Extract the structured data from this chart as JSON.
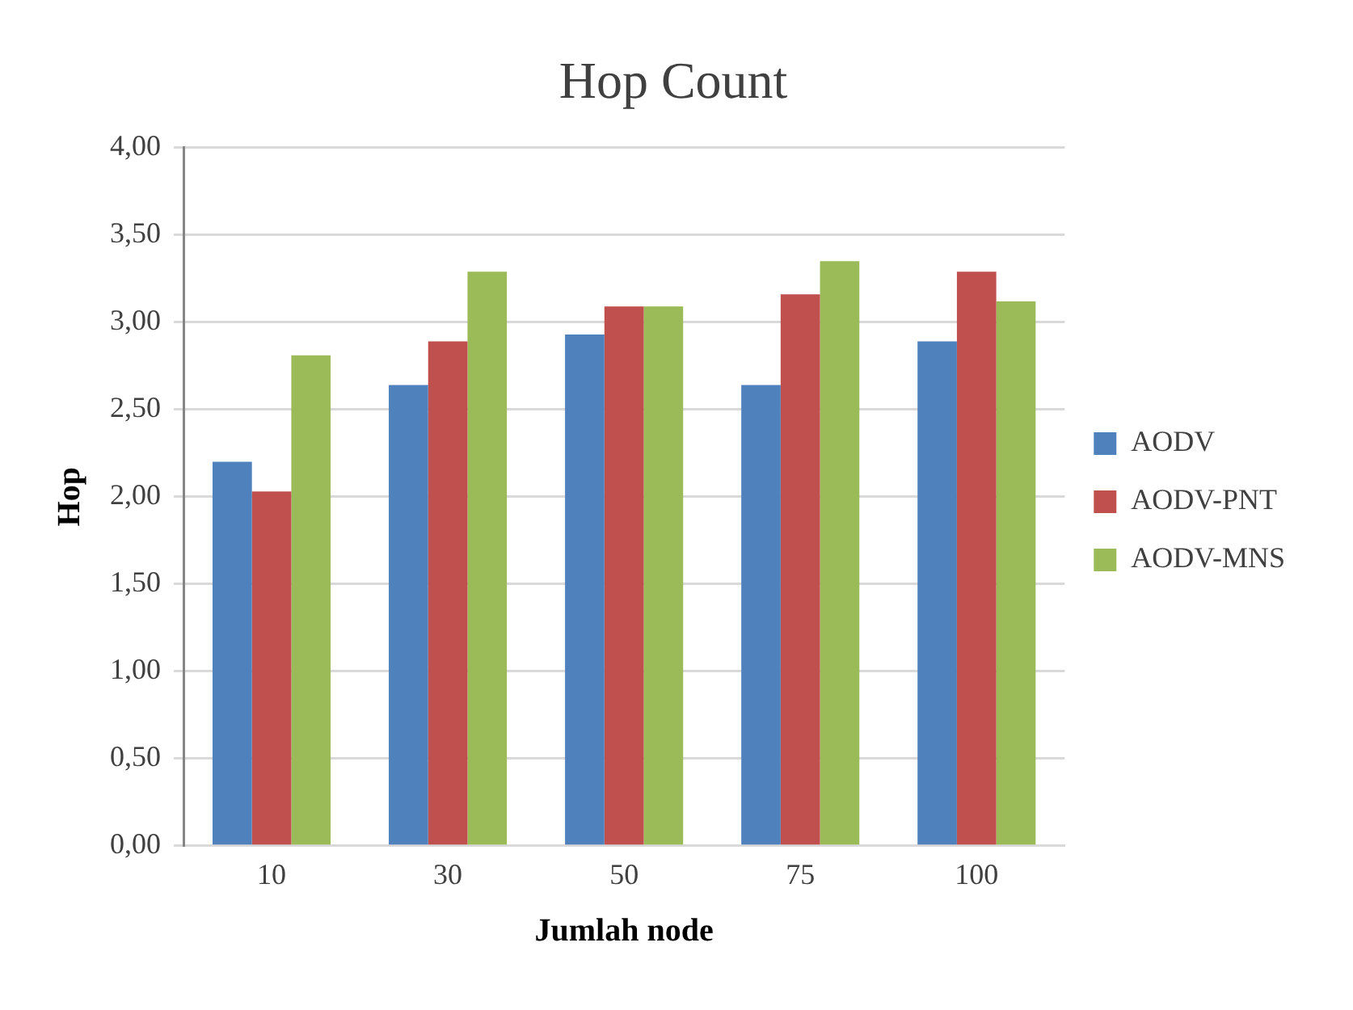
{
  "chart_data": {
    "type": "bar",
    "title": "Hop Count",
    "xlabel": "Jumlah node",
    "ylabel": "Hop",
    "categories": [
      "10",
      "30",
      "50",
      "75",
      "100"
    ],
    "series": [
      {
        "name": "AODV",
        "color": "#4f81bd",
        "values": [
          2.2,
          2.64,
          2.93,
          2.64,
          2.89
        ]
      },
      {
        "name": "AODV-PNT",
        "color": "#c0504d",
        "values": [
          2.03,
          2.89,
          3.09,
          3.16,
          3.29
        ]
      },
      {
        "name": "AODV-MNS",
        "color": "#9bbb59",
        "values": [
          2.81,
          3.29,
          3.09,
          3.35,
          3.12
        ]
      }
    ],
    "ylim": [
      0,
      4
    ],
    "yticks": [
      {
        "value": 0,
        "label": "0,00"
      },
      {
        "value": 0.5,
        "label": "0,50"
      },
      {
        "value": 1,
        "label": "1,00"
      },
      {
        "value": 1.5,
        "label": "1,50"
      },
      {
        "value": 2,
        "label": "2,00"
      },
      {
        "value": 2.5,
        "label": "2,50"
      },
      {
        "value": 3,
        "label": "3,00"
      },
      {
        "value": 3.5,
        "label": "3,50"
      },
      {
        "value": 4,
        "label": "4,00"
      }
    ],
    "grid": "y",
    "legend": "right"
  }
}
